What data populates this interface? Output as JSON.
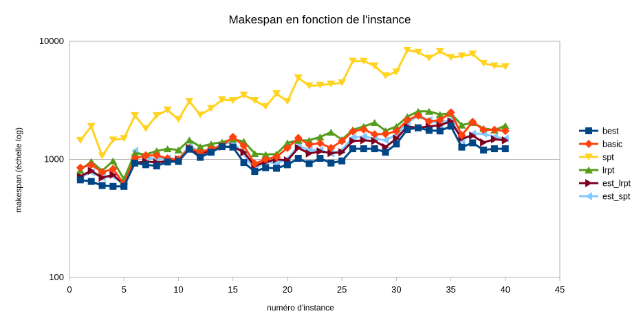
{
  "chart_data": {
    "type": "line",
    "title": "Makespan en fonction de l'instance",
    "xlabel": "numéro d'instance",
    "ylabel": "makespan (échelle log)",
    "xlim": [
      0,
      45
    ],
    "ylim": [
      100,
      10000
    ],
    "yscale": "log",
    "x_ticks": [
      "0",
      "5",
      "10",
      "15",
      "20",
      "25",
      "30",
      "35",
      "40",
      "45"
    ],
    "y_ticks": [
      "100",
      "1000",
      "10000"
    ],
    "grid": "horizontal major gridlines",
    "legend_position": "right",
    "x": [
      1,
      2,
      3,
      4,
      5,
      6,
      7,
      8,
      9,
      10,
      11,
      12,
      13,
      14,
      15,
      16,
      17,
      18,
      19,
      20,
      21,
      22,
      23,
      24,
      25,
      26,
      27,
      28,
      29,
      30,
      31,
      32,
      33,
      34,
      35,
      36,
      37,
      38,
      39,
      40
    ],
    "series": [
      {
        "name": "best",
        "color": "#004586",
        "marker": "square",
        "values": [
          670,
          650,
          600,
          590,
          590,
          930,
          900,
          880,
          950,
          960,
          1220,
          1040,
          1150,
          1280,
          1270,
          940,
          790,
          850,
          840,
          900,
          1020,
          920,
          1020,
          930,
          970,
          1230,
          1230,
          1230,
          1150,
          1350,
          1790,
          1850,
          1760,
          1740,
          1910,
          1270,
          1380,
          1200,
          1230,
          1230
        ]
      },
      {
        "name": "basic",
        "color": "#ff420e",
        "marker": "diamond",
        "values": [
          850,
          900,
          780,
          830,
          620,
          1020,
          1080,
          1080,
          1020,
          1000,
          1250,
          1150,
          1230,
          1300,
          1550,
          1300,
          920,
          1000,
          1050,
          1250,
          1520,
          1330,
          1370,
          1250,
          1430,
          1730,
          1790,
          1630,
          1640,
          1730,
          2150,
          2350,
          2100,
          2150,
          2500,
          1600,
          2080,
          1780,
          1780,
          1740
        ]
      },
      {
        "name": "spt",
        "color": "#ffd320",
        "marker": "triangle-down",
        "values": [
          1450,
          1900,
          1070,
          1460,
          1500,
          2350,
          1820,
          2350,
          2620,
          2180,
          3100,
          2380,
          2700,
          3200,
          3150,
          3500,
          3150,
          2800,
          3600,
          3100,
          4900,
          4200,
          4250,
          4350,
          4450,
          6800,
          6800,
          6200,
          5100,
          5500,
          8400,
          8100,
          7200,
          8200,
          7300,
          7500,
          7800,
          6500,
          6200,
          6100
        ]
      },
      {
        "name": "lrpt",
        "color": "#579d1c",
        "marker": "triangle-up",
        "values": [
          810,
          960,
          800,
          970,
          680,
          1130,
          1100,
          1180,
          1230,
          1200,
          1460,
          1280,
          1350,
          1400,
          1480,
          1420,
          1120,
          1100,
          1110,
          1380,
          1450,
          1450,
          1550,
          1700,
          1470,
          1780,
          1900,
          2050,
          1750,
          1900,
          2300,
          2550,
          2550,
          2400,
          2450,
          1950,
          2050,
          1830,
          1770,
          1930
        ]
      },
      {
        "name": "est_lrpt",
        "color": "#7e0021",
        "marker": "triangle-right",
        "values": [
          720,
          800,
          700,
          740,
          610,
          930,
          960,
          940,
          970,
          1000,
          1250,
          1100,
          1200,
          1280,
          1280,
          1150,
          880,
          950,
          1000,
          980,
          1250,
          1120,
          1170,
          1130,
          1150,
          1430,
          1450,
          1430,
          1270,
          1500,
          1900,
          1850,
          1900,
          1950,
          2100,
          1500,
          1590,
          1390,
          1480,
          1450
        ]
      },
      {
        "name": "est_spt",
        "color": "#83caff",
        "marker": "triangle-left",
        "values": [
          700,
          780,
          700,
          720,
          610,
          1180,
          1050,
          1000,
          1020,
          1000,
          1300,
          1150,
          1200,
          1350,
          1400,
          1100,
          830,
          960,
          920,
          1010,
          1300,
          1200,
          1200,
          1120,
          1200,
          1530,
          1560,
          1500,
          1450,
          1620,
          2040,
          2350,
          2150,
          2000,
          2200,
          1450,
          1650,
          1650,
          1550,
          1500
        ]
      }
    ]
  }
}
